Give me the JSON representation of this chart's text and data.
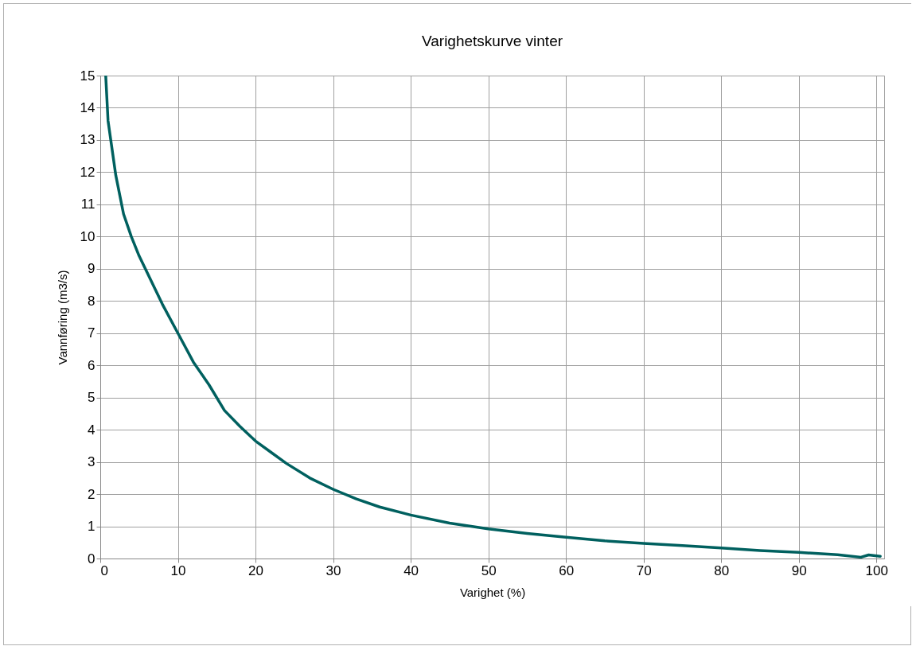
{
  "chart_data": {
    "type": "line",
    "title": "Varighetskurve vinter",
    "xlabel": "Varighet (%)",
    "ylabel": "Vannføring (m3/s)",
    "x": [
      0.7,
      1,
      2,
      3,
      4,
      5,
      6,
      8,
      10,
      12,
      14,
      16,
      18,
      20,
      22,
      24,
      27,
      30,
      33,
      36,
      40,
      45,
      50,
      55,
      60,
      65,
      70,
      75,
      80,
      85,
      90,
      95,
      98,
      99,
      100.5
    ],
    "series": [
      {
        "color": "#00605f",
        "values": [
          15,
          13.6,
          11.9,
          10.7,
          10.0,
          9.4,
          8.9,
          7.9,
          7.0,
          6.1,
          5.4,
          4.6,
          4.1,
          3.65,
          3.3,
          2.95,
          2.5,
          2.15,
          1.85,
          1.6,
          1.35,
          1.1,
          0.92,
          0.78,
          0.66,
          0.55,
          0.47,
          0.4,
          0.33,
          0.25,
          0.19,
          0.12,
          0.04,
          0.11,
          0.07
        ]
      }
    ],
    "xlim": [
      0,
      101
    ],
    "xticks": [
      0,
      10,
      20,
      30,
      40,
      50,
      60,
      70,
      80,
      90,
      100
    ],
    "ylim": [
      0,
      15
    ],
    "yticks": [
      0,
      1,
      2,
      3,
      4,
      5,
      6,
      7,
      8,
      9,
      10,
      11,
      12,
      13,
      14,
      15
    ],
    "grid": true,
    "marker": "none",
    "line_style": "solid"
  }
}
